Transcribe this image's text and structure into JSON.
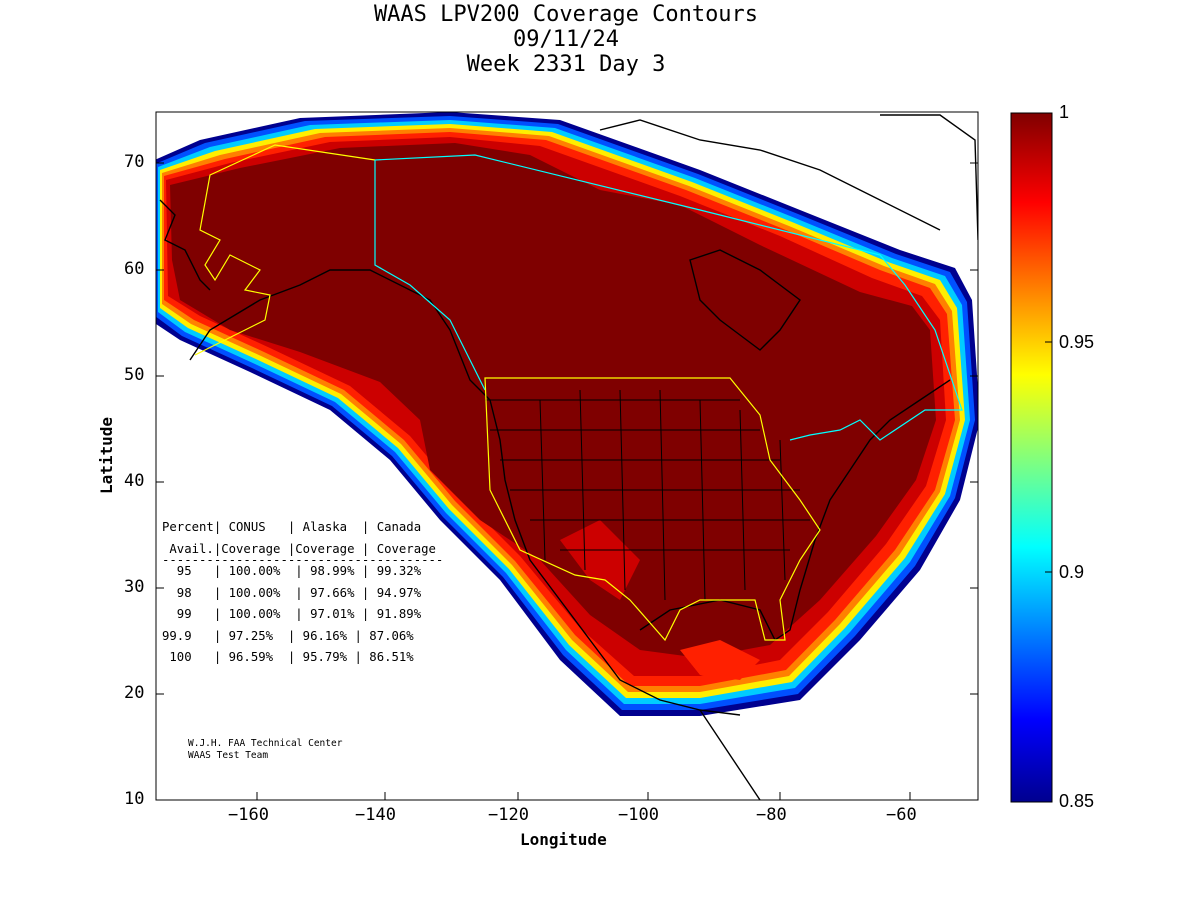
{
  "figure": {
    "title_line1": "WAAS LPV200 Coverage Contours",
    "title_line2": "09/11/24",
    "title_line3": "Week 2331 Day 3",
    "xlabel": "Longitude",
    "ylabel": "Latitude",
    "x_ticks": [
      "−160",
      "−140",
      "−120",
      "−100",
      "−80",
      "−60"
    ],
    "y_ticks": [
      "70",
      "60",
      "50",
      "40",
      "30",
      "20",
      "10"
    ],
    "colorbar_ticks": [
      "1",
      "0.95",
      "0.9",
      "0.85"
    ]
  },
  "stats_table": {
    "header1": "Percent| CONUS   | Alaska  | Canada",
    "header2": " Avail.|Coverage |Coverage | Coverage",
    "divider": "--------------------------------------",
    "rows": [
      "  95   | 100.00%  | 98.99% | 99.32%",
      "  98   | 100.00%  | 97.66% | 94.97%",
      "  99   | 100.00%  | 97.01% | 91.89%",
      "99.9   | 97.25%  | 96.16% | 87.06%",
      " 100   | 96.59%  | 95.79% | 86.51%"
    ]
  },
  "credit": {
    "line1": "W.J.H. FAA Technical Center",
    "line2": "WAAS Test Team"
  },
  "map_data": {
    "lon_range": [
      -175,
      -50
    ],
    "lat_range": [
      10,
      75
    ],
    "colorbar_range": [
      0.85,
      1
    ],
    "colormap": "jet",
    "colors": {
      "full_coverage": "#7f0000",
      "high": "#cc0000",
      "edge_red": "#ff2000",
      "orange": "#ff8000",
      "yellow": "#ffee00",
      "cyan": "#00ccff",
      "blue": "#0040ff",
      "navy": "#00008f",
      "service_boundary_us": "#ffff00",
      "service_boundary_canada": "#00ffff",
      "coastline": "#000000"
    }
  }
}
